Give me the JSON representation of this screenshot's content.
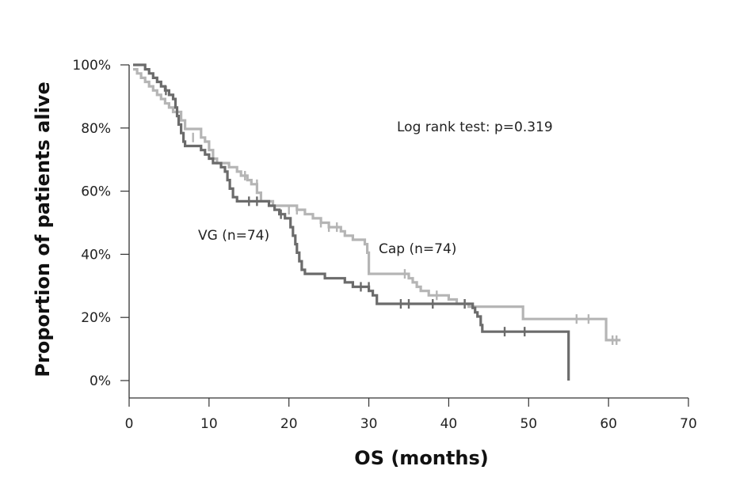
{
  "chart_data": {
    "type": "line",
    "title": "",
    "xlabel": "OS (months)",
    "ylabel": "Proportion of patients alive",
    "xlim": [
      0,
      70
    ],
    "ylim": [
      0,
      100
    ],
    "xticks": [
      0,
      10,
      20,
      30,
      40,
      50,
      60,
      70
    ],
    "xtick_labels": [
      "0",
      "10",
      "20",
      "30",
      "40",
      "50",
      "60",
      "70"
    ],
    "yticks": [
      0,
      20,
      40,
      60,
      80,
      100
    ],
    "ytick_labels": [
      "0%",
      "20%",
      "40%",
      "60%",
      "80%",
      "100%"
    ],
    "grid": false,
    "annotations": {
      "logrank": "Log rank test: p=0.319",
      "vg_label": "VG (n=74)",
      "cap_label": "Cap (n=74)"
    },
    "series": [
      {
        "name": "VG (n=74)",
        "color": "#6b6b6b",
        "steps": [
          [
            0.5,
            100
          ],
          [
            1.8,
            100
          ],
          [
            2.0,
            98.6
          ],
          [
            2.5,
            97.3
          ],
          [
            3.0,
            95.9
          ],
          [
            3.5,
            94.6
          ],
          [
            4.0,
            93.2
          ],
          [
            4.5,
            91.9
          ],
          [
            5.0,
            90.5
          ],
          [
            5.5,
            89.2
          ],
          [
            5.8,
            86.5
          ],
          [
            6.0,
            83.8
          ],
          [
            6.2,
            81.1
          ],
          [
            6.5,
            78.4
          ],
          [
            6.8,
            75.7
          ],
          [
            7.0,
            74.3
          ],
          [
            9.0,
            73.0
          ],
          [
            9.5,
            71.6
          ],
          [
            10.0,
            70.3
          ],
          [
            10.5,
            68.9
          ],
          [
            11.5,
            67.6
          ],
          [
            12.0,
            66.2
          ],
          [
            12.3,
            63.5
          ],
          [
            12.6,
            60.8
          ],
          [
            13.0,
            58.1
          ],
          [
            13.5,
            56.8
          ],
          [
            17.5,
            55.4
          ],
          [
            18.2,
            54.1
          ],
          [
            18.8,
            52.7
          ],
          [
            19.5,
            51.4
          ],
          [
            20.2,
            48.6
          ],
          [
            20.5,
            45.9
          ],
          [
            20.8,
            43.2
          ],
          [
            21.0,
            40.5
          ],
          [
            21.3,
            37.8
          ],
          [
            21.6,
            35.1
          ],
          [
            22.0,
            33.8
          ],
          [
            24.5,
            32.4
          ],
          [
            27.0,
            31.1
          ],
          [
            28.0,
            29.7
          ],
          [
            30.0,
            28.4
          ],
          [
            30.5,
            27.0
          ],
          [
            31.0,
            24.3
          ],
          [
            43.0,
            23.0
          ],
          [
            43.3,
            21.6
          ],
          [
            43.6,
            20.3
          ],
          [
            44.0,
            17.6
          ],
          [
            44.2,
            15.5
          ],
          [
            55.0,
            15.5
          ],
          [
            55.0,
            0
          ]
        ],
        "censors": [
          [
            4.6,
            91.9
          ],
          [
            15.0,
            56.8
          ],
          [
            16.0,
            56.8
          ],
          [
            19.0,
            52.7
          ],
          [
            29.0,
            29.7
          ],
          [
            30.0,
            29.7
          ],
          [
            34.0,
            24.3
          ],
          [
            35.0,
            24.3
          ],
          [
            38.0,
            24.3
          ],
          [
            42.0,
            24.3
          ],
          [
            47.0,
            15.5
          ],
          [
            49.5,
            15.5
          ]
        ]
      },
      {
        "name": "Cap (n=74)",
        "color": "#b5b5b5",
        "steps": [
          [
            0.5,
            98.6
          ],
          [
            1.0,
            97.3
          ],
          [
            1.5,
            95.9
          ],
          [
            2.0,
            94.6
          ],
          [
            2.5,
            93.2
          ],
          [
            3.0,
            91.9
          ],
          [
            3.5,
            90.5
          ],
          [
            4.0,
            89.2
          ],
          [
            4.5,
            87.8
          ],
          [
            5.0,
            86.5
          ],
          [
            5.5,
            85.1
          ],
          [
            6.5,
            82.4
          ],
          [
            7.0,
            79.7
          ],
          [
            9.0,
            77.0
          ],
          [
            9.5,
            75.7
          ],
          [
            10.0,
            73.0
          ],
          [
            10.5,
            70.3
          ],
          [
            11.0,
            68.9
          ],
          [
            12.5,
            67.6
          ],
          [
            13.5,
            66.2
          ],
          [
            14.0,
            64.9
          ],
          [
            14.8,
            63.5
          ],
          [
            15.3,
            62.2
          ],
          [
            16.0,
            59.5
          ],
          [
            16.5,
            56.8
          ],
          [
            18.0,
            55.4
          ],
          [
            21.0,
            54.1
          ],
          [
            22.0,
            52.7
          ],
          [
            23.0,
            51.4
          ],
          [
            24.0,
            50.0
          ],
          [
            25.0,
            48.6
          ],
          [
            26.5,
            47.3
          ],
          [
            27.0,
            45.9
          ],
          [
            28.0,
            44.6
          ],
          [
            29.5,
            43.2
          ],
          [
            29.8,
            40.5
          ],
          [
            30.0,
            33.8
          ],
          [
            35.0,
            32.4
          ],
          [
            35.5,
            31.1
          ],
          [
            36.0,
            29.7
          ],
          [
            36.5,
            28.4
          ],
          [
            37.5,
            27.0
          ],
          [
            40.0,
            25.7
          ],
          [
            41.0,
            24.3
          ],
          [
            42.5,
            23.4
          ],
          [
            49.0,
            23.4
          ],
          [
            49.3,
            19.5
          ],
          [
            59.5,
            19.5
          ],
          [
            59.7,
            12.8
          ],
          [
            61.5,
            12.8
          ]
        ],
        "censors": [
          [
            8.0,
            77.0
          ],
          [
            14.5,
            64.9
          ],
          [
            16.0,
            62.2
          ],
          [
            20.0,
            54.1
          ],
          [
            21.0,
            54.1
          ],
          [
            24.0,
            50.0
          ],
          [
            25.0,
            48.6
          ],
          [
            26.0,
            48.6
          ],
          [
            34.5,
            33.8
          ],
          [
            38.5,
            27.0
          ],
          [
            42.0,
            24.3
          ],
          [
            56.0,
            19.5
          ],
          [
            57.5,
            19.5
          ],
          [
            60.5,
            12.8
          ],
          [
            61.0,
            12.8
          ]
        ]
      }
    ]
  }
}
